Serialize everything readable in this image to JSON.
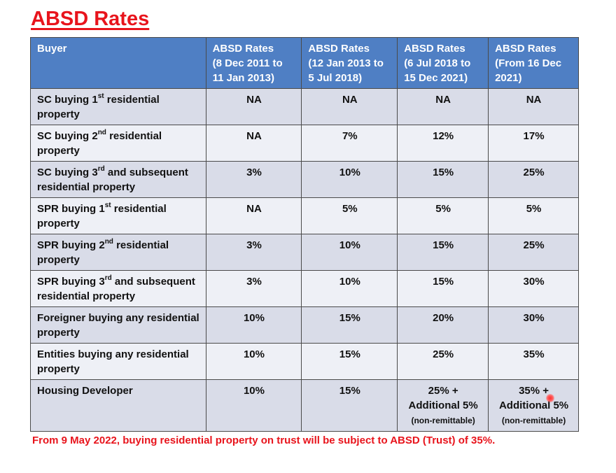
{
  "title": "ABSD Rates",
  "table": {
    "headers": [
      [
        "Buyer"
      ],
      [
        "ABSD Rates",
        "(8 Dec 2011 to",
        "11 Jan 2013)"
      ],
      [
        "ABSD Rates",
        "(12 Jan 2013 to",
        "5 Jul 2018)"
      ],
      [
        "ABSD Rates",
        "(6 Jul 2018 to",
        "15 Dec 2021)"
      ],
      [
        "ABSD Rates",
        "(From 16 Dec",
        "2021)"
      ]
    ],
    "rows": [
      {
        "buyer": {
          "pre": "SC buying 1",
          "sup": "st",
          "post": " residential property"
        },
        "values": [
          "NA",
          "NA",
          "NA",
          "NA"
        ]
      },
      {
        "buyer": {
          "pre": "SC buying 2",
          "sup": "nd",
          "post": " residential property"
        },
        "values": [
          "NA",
          "7%",
          "12%",
          "17%"
        ]
      },
      {
        "buyer": {
          "pre": "SC buying 3",
          "sup": "rd",
          "post": " and subsequent residential property"
        },
        "values": [
          "3%",
          "10%",
          "15%",
          "25%"
        ]
      },
      {
        "buyer": {
          "pre": "SPR buying 1",
          "sup": "st",
          "post": " residential property"
        },
        "values": [
          "NA",
          "5%",
          "5%",
          "5%"
        ]
      },
      {
        "buyer": {
          "pre": "SPR buying 2",
          "sup": "nd",
          "post": " residential property"
        },
        "values": [
          "3%",
          "10%",
          "15%",
          "25%"
        ]
      },
      {
        "buyer": {
          "pre": "SPR buying 3",
          "sup": "rd",
          "post": " and subsequent residential property"
        },
        "values": [
          "3%",
          "10%",
          "15%",
          "30%"
        ]
      },
      {
        "buyer": {
          "pre": "Foreigner buying any residential property",
          "sup": "",
          "post": ""
        },
        "values": [
          "10%",
          "15%",
          "20%",
          "30%"
        ]
      },
      {
        "buyer": {
          "pre": "Entities buying any residential property",
          "sup": "",
          "post": ""
        },
        "values": [
          "10%",
          "15%",
          "25%",
          "35%"
        ]
      }
    ],
    "developer": {
      "buyer": "Housing Developer",
      "values": [
        {
          "main": "10%"
        },
        {
          "main": "15%"
        },
        {
          "main": "25% +",
          "extra": "Additional 5%",
          "note": "(non-remittable)"
        },
        {
          "main": "35% +",
          "extra": "Additional 5%",
          "note": "(non-remittable)"
        }
      ]
    }
  },
  "footnote": "From 9 May 2022, buying residential property on trust will be subject to ABSD (Trust) of 35%.",
  "colors": {
    "title": "#e8141c",
    "header_bg": "#4f7fc4",
    "row_odd": "#d9dce8",
    "row_even": "#eef0f6"
  }
}
